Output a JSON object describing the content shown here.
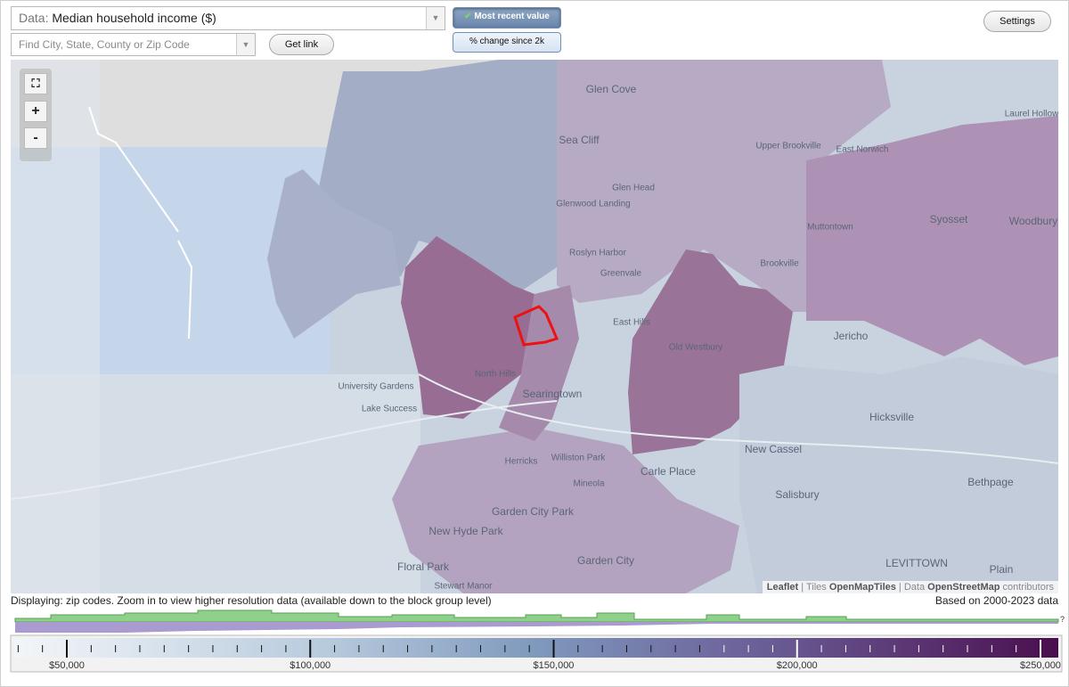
{
  "toolbar": {
    "data_label": "Data:",
    "data_value": "Median household income ($)",
    "search_placeholder": "Find City, State, County or Zip Code",
    "get_link": "Get link",
    "most_recent": "Most recent value",
    "percent_change": "% change since 2k",
    "settings": "Settings"
  },
  "map": {
    "labels": [
      "Glen Cove",
      "Sea Cliff",
      "Glen Head",
      "Glenwood Landing",
      "Roslyn Harbor",
      "Greenvale",
      "Upper Brookville",
      "East Norwich",
      "Laurel Hollow",
      "Muttontown",
      "Syosset",
      "Woodbury",
      "Brookville",
      "Jericho",
      "Old Westbury",
      "East Hills",
      "North Hills",
      "Searingtown",
      "University Gardens",
      "Lake Success",
      "Herricks",
      "Williston Park",
      "Mineola",
      "Carle Place",
      "New Cassel",
      "Hicksville",
      "Bethpage",
      "Salisbury",
      "Garden City Park",
      "New Hyde Park",
      "Garden City",
      "Floral Park",
      "Stewart Manor",
      "LEVITTOWN",
      "Plain"
    ],
    "zoom_in": "+",
    "zoom_out": "-",
    "attribution": [
      "Leaflet",
      "|",
      "Tiles",
      "OpenMapTiles",
      "|",
      "Data",
      "OpenStreetMap",
      "contributors"
    ]
  },
  "footer": {
    "displaying": "Displaying: zip codes. Zoom in to view higher resolution data (available down to the block group level)",
    "based_on": "Based on 2000-2023 data",
    "unknown": "?"
  },
  "legend": {
    "labels": [
      "$50,000",
      "$100,000",
      "$150,000",
      "$200,000",
      "$250,000"
    ]
  }
}
